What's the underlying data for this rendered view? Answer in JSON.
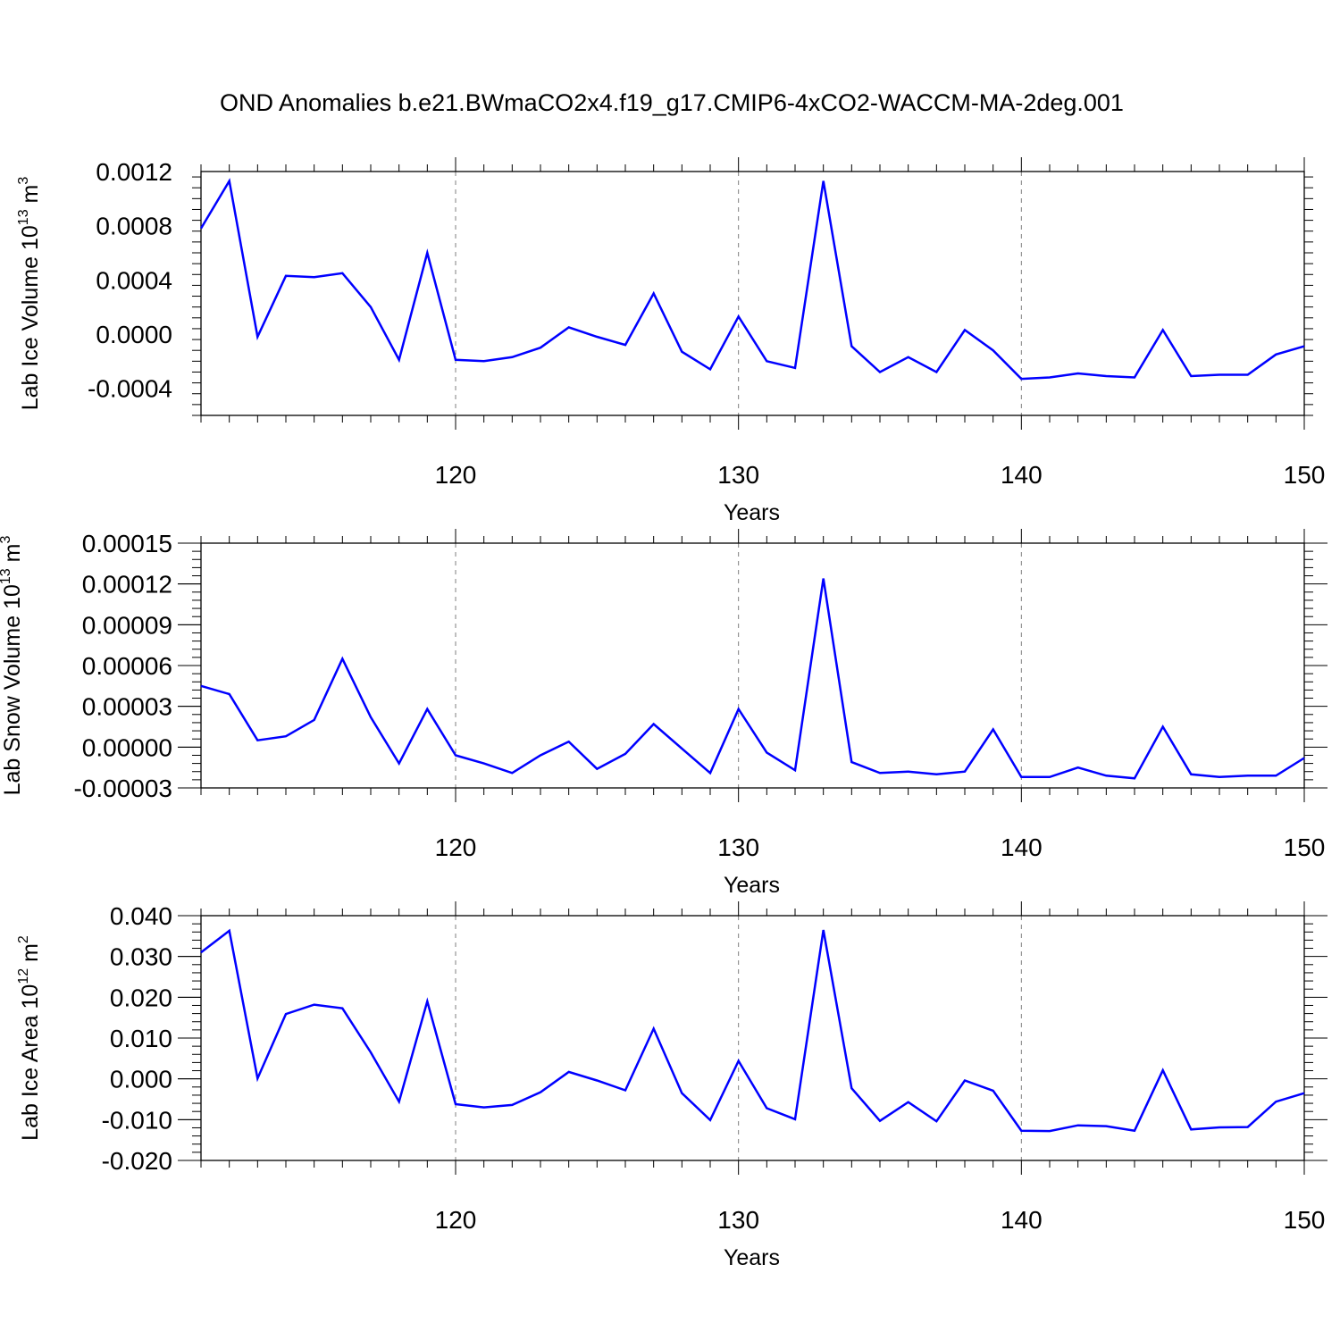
{
  "title": "OND Anomalies b.e21.BWmaCO2x4.f19_g17.CMIP6-4xCO2-WACCM-MA-2deg.001",
  "colors": {
    "series": "#0000ff",
    "axis": "#000000",
    "grid": "#7f7f7f"
  },
  "chart_data": [
    {
      "type": "line",
      "ylabel": "Lab Ice Volume",
      "ylabel_unit_base": "10",
      "ylabel_unit_exp": "13",
      "ylabel_unit": "m",
      "ylabel_unit_unit_exp": "3",
      "xlabel": "Years",
      "xlim": [
        111,
        150
      ],
      "ylim": [
        -0.0006,
        0.0012
      ],
      "yticks": [
        -0.0004,
        0.0,
        0.0004,
        0.0008,
        0.0012
      ],
      "ytick_labels": [
        "-0.0004",
        "0.0000",
        "0.0004",
        "0.0008",
        "0.0012"
      ],
      "xticks": [
        120,
        130,
        140,
        150
      ],
      "xtick_labels": [
        "120",
        "130",
        "140",
        "150"
      ],
      "grid": "vertical dashed at x ticks",
      "x": [
        111,
        112,
        113,
        114,
        115,
        116,
        117,
        118,
        119,
        120,
        121,
        122,
        123,
        124,
        125,
        126,
        127,
        128,
        129,
        130,
        131,
        132,
        133,
        134,
        135,
        136,
        137,
        138,
        139,
        140,
        141,
        142,
        143,
        144,
        145,
        146,
        147,
        148,
        149,
        150
      ],
      "y": [
        0.00078,
        0.00113,
        -2e-05,
        0.00043,
        0.00042,
        0.00045,
        0.0002,
        -0.00019,
        0.0006,
        -0.00019,
        -0.0002,
        -0.00017,
        -0.0001,
        5e-05,
        -2e-05,
        -8e-05,
        0.0003,
        -0.00013,
        -0.00026,
        0.00013,
        -0.0002,
        -0.00025,
        0.00113,
        -9e-05,
        -0.00028,
        -0.00017,
        -0.00028,
        3e-05,
        -0.00012,
        -0.00033,
        -0.00032,
        -0.00029,
        -0.00031,
        -0.00032,
        3e-05,
        -0.00031,
        -0.0003,
        -0.0003,
        -0.00015,
        -9e-05
      ]
    },
    {
      "type": "line",
      "ylabel": "Lab Snow Volume",
      "ylabel_unit_base": "10",
      "ylabel_unit_exp": "13",
      "ylabel_unit": "m",
      "ylabel_unit_unit_exp": "3",
      "xlabel": "Years",
      "xlim": [
        111,
        150
      ],
      "ylim": [
        -3e-05,
        0.00015
      ],
      "yticks": [
        -3e-05,
        0.0,
        3e-05,
        6e-05,
        9e-05,
        0.00012,
        0.00015
      ],
      "ytick_labels": [
        "-0.00003",
        "0.00000",
        "0.00003",
        "0.00006",
        "0.00009",
        "0.00012",
        "0.00015"
      ],
      "xticks": [
        120,
        130,
        140,
        150
      ],
      "xtick_labels": [
        "120",
        "130",
        "140",
        "150"
      ],
      "grid": "vertical dashed at x ticks",
      "x": [
        111,
        112,
        113,
        114,
        115,
        116,
        117,
        118,
        119,
        120,
        121,
        122,
        123,
        124,
        125,
        126,
        127,
        128,
        129,
        130,
        131,
        132,
        133,
        134,
        135,
        136,
        137,
        138,
        139,
        140,
        141,
        142,
        143,
        144,
        145,
        146,
        147,
        148,
        149,
        150
      ],
      "y": [
        4.5e-05,
        3.9e-05,
        5e-06,
        8e-06,
        2e-05,
        6.5e-05,
        2.2e-05,
        -1.2e-05,
        2.8e-05,
        -6e-06,
        -1.2e-05,
        -1.9e-05,
        -6e-06,
        4e-06,
        -1.6e-05,
        -5e-06,
        1.7e-05,
        -1e-06,
        -1.9e-05,
        2.8e-05,
        -4e-06,
        -1.7e-05,
        0.000124,
        -1.1e-05,
        -1.9e-05,
        -1.8e-05,
        -2e-05,
        -1.8e-05,
        1.3e-05,
        -2.2e-05,
        -2.2e-05,
        -1.5e-05,
        -2.1e-05,
        -2.3e-05,
        1.5e-05,
        -2e-05,
        -2.2e-05,
        -2.1e-05,
        -2.1e-05,
        -8e-06
      ]
    },
    {
      "type": "line",
      "ylabel": "Lab Ice Area",
      "ylabel_unit_base": "10",
      "ylabel_unit_exp": "12",
      "ylabel_unit": "m",
      "ylabel_unit_unit_exp": "2",
      "xlabel": "Years",
      "xlim": [
        111,
        150
      ],
      "ylim": [
        -0.02,
        0.04
      ],
      "yticks": [
        -0.02,
        -0.01,
        0.0,
        0.01,
        0.02,
        0.03,
        0.04
      ],
      "ytick_labels": [
        "-0.020",
        "-0.010",
        "0.000",
        "0.010",
        "0.020",
        "0.030",
        "0.040"
      ],
      "xticks": [
        120,
        130,
        140,
        150
      ],
      "xtick_labels": [
        "120",
        "130",
        "140",
        "150"
      ],
      "grid": "vertical dashed at x ticks",
      "x": [
        111,
        112,
        113,
        114,
        115,
        116,
        117,
        118,
        119,
        120,
        121,
        122,
        123,
        124,
        125,
        126,
        127,
        128,
        129,
        130,
        131,
        132,
        133,
        134,
        135,
        136,
        137,
        138,
        139,
        140,
        141,
        142,
        143,
        144,
        145,
        146,
        147,
        148,
        149,
        150
      ],
      "y": [
        0.031,
        0.0363,
        0.0001,
        0.0159,
        0.0182,
        0.0173,
        0.0065,
        -0.0056,
        0.019,
        -0.0062,
        -0.007,
        -0.0064,
        -0.0033,
        0.0017,
        -0.0004,
        -0.0028,
        0.0123,
        -0.0035,
        -0.0101,
        0.0044,
        -0.0072,
        -0.0099,
        0.0365,
        -0.0023,
        -0.0103,
        -0.0057,
        -0.0104,
        -0.0004,
        -0.0029,
        -0.0127,
        -0.0128,
        -0.0114,
        -0.0116,
        -0.0127,
        0.0021,
        -0.0124,
        -0.0119,
        -0.0118,
        -0.0056,
        -0.0035
      ]
    }
  ]
}
